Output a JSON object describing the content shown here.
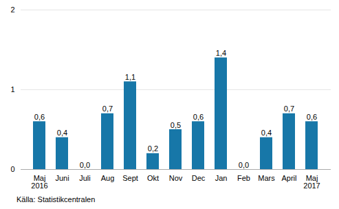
{
  "chart_data": {
    "type": "bar",
    "categories": [
      "Maj\n2016",
      "Juni",
      "Juli",
      "Aug",
      "Sept",
      "Okt",
      "Nov",
      "Dec",
      "Jan",
      "Feb",
      "Mars",
      "April",
      "Maj\n2017"
    ],
    "values": [
      0.6,
      0.4,
      0.0,
      0.7,
      1.1,
      0.2,
      0.5,
      0.6,
      1.4,
      0.0,
      0.4,
      0.7,
      0.6
    ],
    "value_labels": [
      "0,6",
      "0,4",
      "0,0",
      "0,7",
      "1,1",
      "0,2",
      "0,5",
      "0,6",
      "1,4",
      "0,0",
      "0,4",
      "0,7",
      "0,6"
    ],
    "data_labels": true,
    "color": "#1777a8",
    "ylim": [
      0,
      2
    ],
    "yticks": [
      0,
      1,
      2
    ],
    "grid": true,
    "caption": "Källa: Statistikcentralen"
  }
}
